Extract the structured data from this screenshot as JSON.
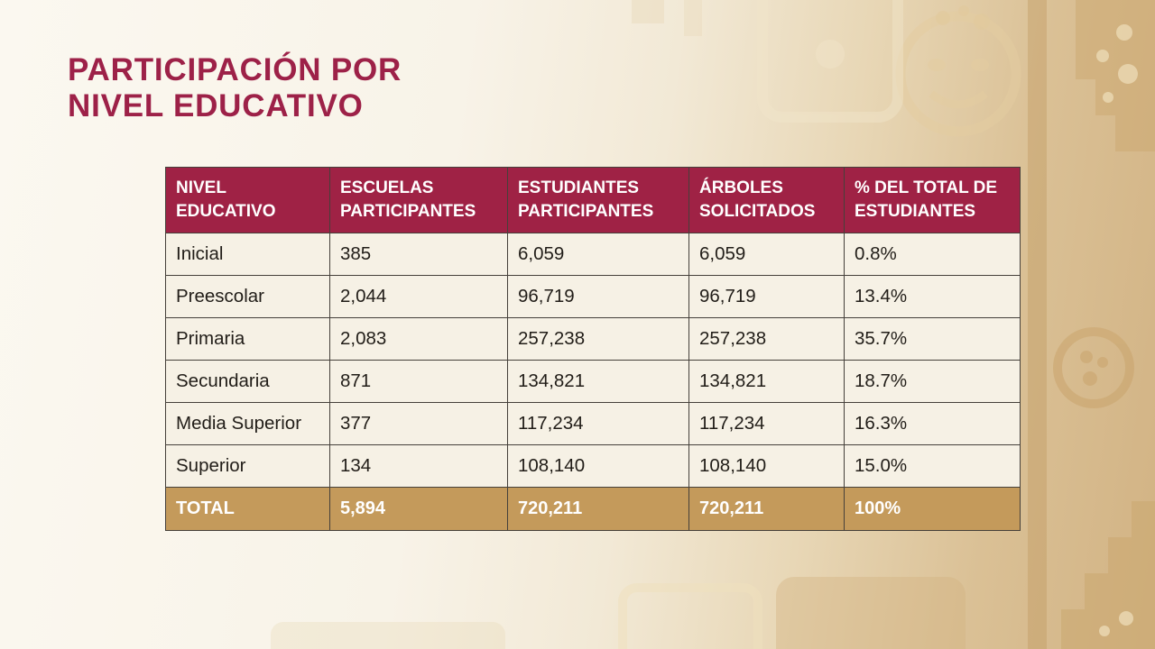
{
  "slide": {
    "title_line1": "PARTICIPACIÓN POR",
    "title_line2": "NIVEL EDUCATIVO"
  },
  "theme": {
    "title_color": "#9D2148",
    "header_bg": "#9F2245",
    "header_text": "#FFFFFF",
    "row_bg": "#F6F1E5",
    "row_text": "#211D18",
    "total_bg": "#C49A5B",
    "total_text": "#FFFFFF",
    "background_left": "#FBF8F0",
    "background_right": "#D2B384",
    "border_color": "#45403A"
  },
  "table": {
    "headers": [
      "NIVEL EDUCATIVO",
      "ESCUELAS PARTICIPANTES",
      "ESTUDIANTES PARTICIPANTES",
      "ÁRBOLES SOLICITADOS",
      "% DEL TOTAL DE ESTUDIANTES"
    ],
    "rows": [
      [
        "Inicial",
        "385",
        "6,059",
        "6,059",
        "0.8%"
      ],
      [
        "Preescolar",
        "2,044",
        "96,719",
        "96,719",
        "13.4%"
      ],
      [
        "Primaria",
        "2,083",
        "257,238",
        "257,238",
        "35.7%"
      ],
      [
        "Secundaria",
        "871",
        "134,821",
        "134,821",
        "18.7%"
      ],
      [
        "Media Superior",
        "377",
        "117,234",
        "117,234",
        "16.3%"
      ],
      [
        "Superior",
        "134",
        "108,140",
        "108,140",
        "15.0%"
      ]
    ],
    "total": [
      "TOTAL",
      "5,894",
      "720,211",
      "720,211",
      "100%"
    ]
  },
  "chart_data": {
    "type": "table",
    "title": "PARTICIPACIÓN POR NIVEL EDUCATIVO",
    "columns": [
      "NIVEL EDUCATIVO",
      "ESCUELAS PARTICIPANTES",
      "ESTUDIANTES PARTICIPANTES",
      "ÁRBOLES SOLICITADOS",
      "% DEL TOTAL DE ESTUDIANTES"
    ],
    "rows": [
      [
        "Inicial",
        385,
        6059,
        6059,
        "0.8%"
      ],
      [
        "Preescolar",
        2044,
        96719,
        96719,
        "13.4%"
      ],
      [
        "Primaria",
        2083,
        257238,
        257238,
        "35.7%"
      ],
      [
        "Secundaria",
        871,
        134821,
        134821,
        "18.7%"
      ],
      [
        "Media Superior",
        377,
        117234,
        117234,
        "16.3%"
      ],
      [
        "Superior",
        134,
        108140,
        108140,
        "15.0%"
      ],
      [
        "TOTAL",
        5894,
        720211,
        720211,
        "100%"
      ]
    ]
  }
}
